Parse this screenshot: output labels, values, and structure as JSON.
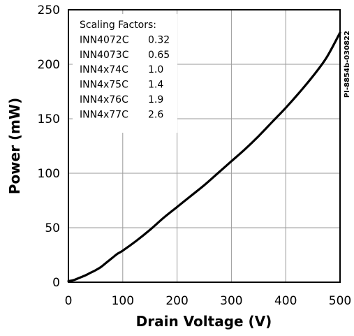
{
  "chart_data": {
    "type": "line",
    "xlabel": "Drain Voltage (V)",
    "ylabel": "Power (mW)",
    "xlim": [
      0,
      500
    ],
    "ylim": [
      0,
      250
    ],
    "x_ticks": [
      0,
      100,
      200,
      300,
      400,
      500
    ],
    "y_ticks": [
      0,
      50,
      100,
      150,
      200,
      250
    ],
    "grid": true,
    "series": [
      {
        "x": [
          0,
          10,
          20,
          30,
          40,
          50,
          60,
          70,
          80,
          90,
          100,
          125,
          150,
          175,
          200,
          225,
          250,
          275,
          300,
          325,
          350,
          375,
          400,
          425,
          450,
          475,
          500
        ],
        "y": [
          1,
          2,
          4,
          6,
          8.5,
          11,
          14,
          18,
          22,
          26,
          29,
          38,
          48,
          59,
          69,
          79,
          89,
          100,
          111,
          122,
          134,
          147,
          160,
          174,
          189,
          206,
          229
        ]
      }
    ],
    "annotation": {
      "title": "Scaling Factors:",
      "rows": [
        {
          "part": "INN4072C",
          "factor": "0.32"
        },
        {
          "part": "INN4073C",
          "factor": "0.65"
        },
        {
          "part": "INN4x74C",
          "factor": "1.0"
        },
        {
          "part": "INN4x75C",
          "factor": "1.4"
        },
        {
          "part": "INN4x76C",
          "factor": "1.9"
        },
        {
          "part": "INN4x77C",
          "factor": "2.6"
        }
      ]
    },
    "doc_id": "PI-8854b-030822",
    "colors": {
      "line": "#000000",
      "grid": "#9a9a9a",
      "frame": "#000000"
    }
  }
}
